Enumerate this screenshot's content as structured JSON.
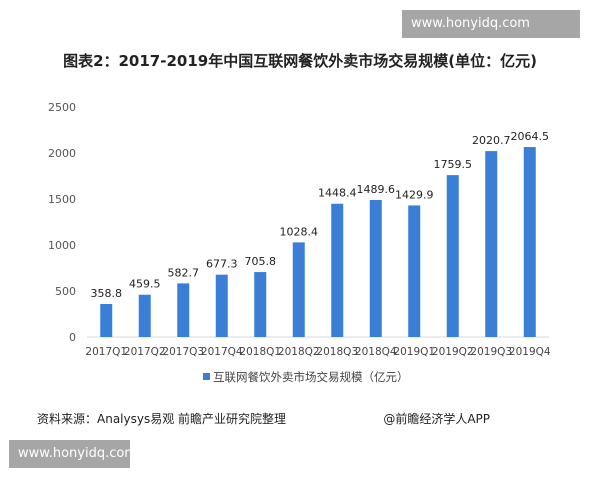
{
  "watermark": "www.honyidq.com",
  "source": "资料来源：Analysys易观 前瞻产业研究院整理",
  "credit": "@前瞻经济学人APP",
  "chart_data": {
    "type": "bar",
    "title": "图表2：2017-2019年中国互联网餐饮外卖市场交易规模(单位：亿元)",
    "categories": [
      "2017Q1",
      "2017Q2",
      "2017Q3",
      "2017Q4",
      "2018Q1",
      "2018Q2",
      "2018Q3",
      "2018Q4",
      "2019Q1",
      "2019Q2",
      "2019Q3",
      "2019Q4"
    ],
    "series": [
      {
        "name": "互联网餐饮外卖市场交易规模（亿元）",
        "values": [
          358.8,
          459.5,
          582.7,
          677.3,
          705.8,
          1028.4,
          1448.4,
          1489.6,
          1429.9,
          1759.5,
          2020.7,
          2064.5
        ]
      }
    ],
    "ylim": [
      0,
      2500
    ],
    "yticks": [
      0,
      500,
      1000,
      1500,
      2000,
      2500
    ],
    "grid": false,
    "legend": "bottom",
    "color": "#3a7fd5"
  }
}
